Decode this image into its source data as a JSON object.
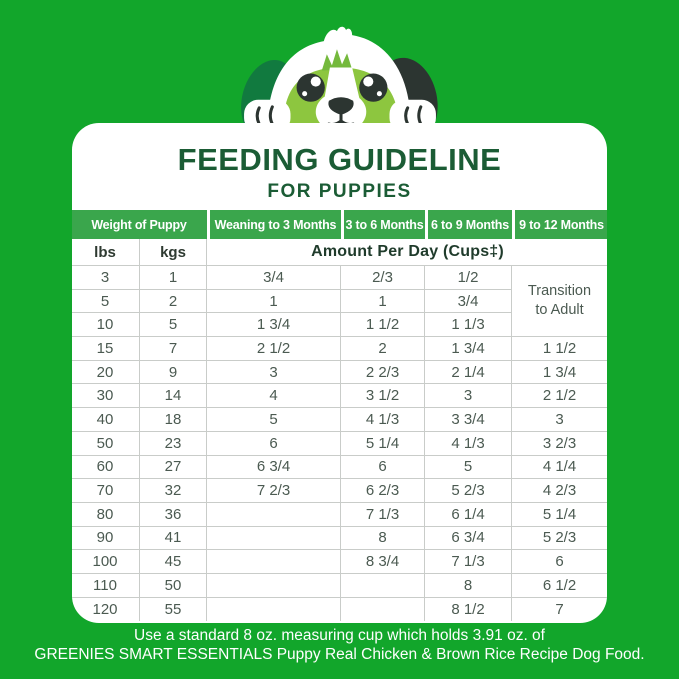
{
  "title": {
    "main": "FEEDING GUIDELINE",
    "sub": "FOR PUPPIES"
  },
  "colors": {
    "background_green": "#12a62b",
    "header_band_green": "#3aa64c",
    "title_dark_green": "#1b5c35",
    "card_white": "#ffffff",
    "table_text": "#4b5a51",
    "grid_line": "#c9ccc9",
    "puppy_face_green": "#8dc63f",
    "puppy_ear_dark_green": "#117a3f",
    "puppy_dark": "#2c3531"
  },
  "illustration": {
    "name": "puppy-peeking-over-card"
  },
  "table": {
    "header_row1": {
      "0": "Weight of Puppy",
      "1": "Weaning to 3 Months",
      "2": "3 to 6 Months",
      "3": "6 to 9 Months",
      "4": "9 to 12 Months"
    },
    "header_row2": {
      "lbs": "lbs",
      "kgs": "kgs",
      "amount": "Amount Per Day (Cups‡)"
    },
    "transition_label": "Transition to Adult",
    "rows": [
      [
        "3",
        "1",
        "3/4",
        "2/3",
        "1/2",
        null
      ],
      [
        "5",
        "2",
        "1",
        "1",
        "3/4",
        null
      ],
      [
        "10",
        "5",
        "1 3/4",
        "1 1/2",
        "1 1/3",
        null
      ],
      [
        "15",
        "7",
        "2 1/2",
        "2",
        "1 3/4",
        "1 1/2"
      ],
      [
        "20",
        "9",
        "3",
        "2 2/3",
        "2 1/4",
        "1 3/4"
      ],
      [
        "30",
        "14",
        "4",
        "3 1/2",
        "3",
        "2 1/2"
      ],
      [
        "40",
        "18",
        "5",
        "4 1/3",
        "3 3/4",
        "3"
      ],
      [
        "50",
        "23",
        "6",
        "5 1/4",
        "4 1/3",
        "3 2/3"
      ],
      [
        "60",
        "27",
        "6 3/4",
        "6",
        "5",
        "4 1/4"
      ],
      [
        "70",
        "32",
        "7 2/3",
        "6 2/3",
        "5 2/3",
        "4 2/3"
      ],
      [
        "80",
        "36",
        "",
        "7 1/3",
        "6 1/4",
        "5 1/4"
      ],
      [
        "90",
        "41",
        "",
        "8",
        "6 3/4",
        "5 2/3"
      ],
      [
        "100",
        "45",
        "",
        "8 3/4",
        "7 1/3",
        "6"
      ],
      [
        "110",
        "50",
        "",
        "",
        "8",
        "6 1/2"
      ],
      [
        "120",
        "55",
        "",
        "",
        "8 1/2",
        "7"
      ]
    ]
  },
  "footer": {
    "line1": "Use a standard 8 oz. measuring cup which holds 3.91 oz. of",
    "line2": "GREENIES SMART ESSENTIALS Puppy Real Chicken & Brown Rice Recipe Dog Food."
  },
  "chart_data": {
    "type": "table",
    "title": "FEEDING GUIDELINE FOR PUPPIES",
    "subtitle": "Amount Per Day (Cups‡)",
    "columns": [
      "Weight (lbs)",
      "Weight (kgs)",
      "Weaning to 3 Months",
      "3 to 6 Months",
      "6 to 9 Months",
      "9 to 12 Months"
    ],
    "rows": [
      [
        "3",
        "1",
        "3/4",
        "2/3",
        "1/2",
        "Transition to Adult"
      ],
      [
        "5",
        "2",
        "1",
        "1",
        "3/4",
        "Transition to Adult"
      ],
      [
        "10",
        "5",
        "1 3/4",
        "1 1/2",
        "1 1/3",
        "Transition to Adult"
      ],
      [
        "15",
        "7",
        "2 1/2",
        "2",
        "1 3/4",
        "1 1/2"
      ],
      [
        "20",
        "9",
        "3",
        "2 2/3",
        "2 1/4",
        "1 3/4"
      ],
      [
        "30",
        "14",
        "4",
        "3 1/2",
        "3",
        "2 1/2"
      ],
      [
        "40",
        "18",
        "5",
        "4 1/3",
        "3 3/4",
        "3"
      ],
      [
        "50",
        "23",
        "6",
        "5 1/4",
        "4 1/3",
        "3 2/3"
      ],
      [
        "60",
        "27",
        "6 3/4",
        "6",
        "5",
        "4 1/4"
      ],
      [
        "70",
        "32",
        "7 2/3",
        "6 2/3",
        "5 2/3",
        "4 2/3"
      ],
      [
        "80",
        "36",
        "",
        "7 1/3",
        "6 1/4",
        "5 1/4"
      ],
      [
        "90",
        "41",
        "",
        "8",
        "6 3/4",
        "5 2/3"
      ],
      [
        "100",
        "45",
        "",
        "8 3/4",
        "7 1/3",
        "6"
      ],
      [
        "110",
        "50",
        "",
        "",
        "8",
        "6 1/2"
      ],
      [
        "120",
        "55",
        "",
        "",
        "8 1/2",
        "7"
      ]
    ],
    "footnote": "Use a standard 8 oz. measuring cup which holds 3.91 oz. of GREENIES SMART ESSENTIALS Puppy Real Chicken & Brown Rice Recipe Dog Food."
  }
}
